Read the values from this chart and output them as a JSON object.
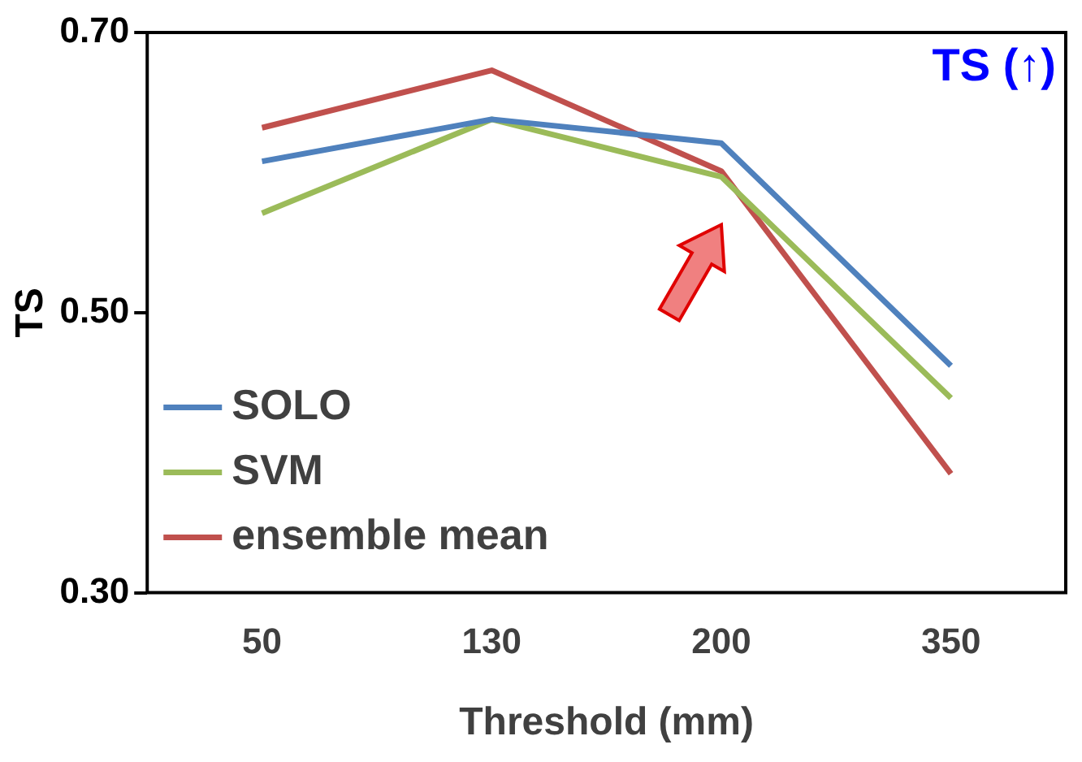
{
  "chart_data": {
    "type": "line",
    "xlabel": "Threshold (mm)",
    "ylabel": "TS",
    "annotations": [
      "TS (↑)"
    ],
    "categories": [
      "50",
      "130",
      "200",
      "350"
    ],
    "series": [
      {
        "name": "SOLO",
        "color": "#4f81bd",
        "values": [
          0.608,
          0.638,
          0.621,
          0.462
        ]
      },
      {
        "name": "SVM",
        "color": "#9bbb59",
        "values": [
          0.571,
          0.638,
          0.597,
          0.439
        ]
      },
      {
        "name": "ensemble mean",
        "color": "#c0504d",
        "values": [
          0.632,
          0.673,
          0.601,
          0.385
        ]
      }
    ],
    "ylim": [
      0.3,
      0.7
    ],
    "yticks": [
      {
        "value": 0.3,
        "label": "0.30"
      },
      {
        "value": 0.5,
        "label": "0.50"
      },
      {
        "value": 0.7,
        "label": "0.70"
      }
    ],
    "grid": false,
    "legend": "bottom left",
    "marker": "none",
    "line_style": "solid"
  }
}
